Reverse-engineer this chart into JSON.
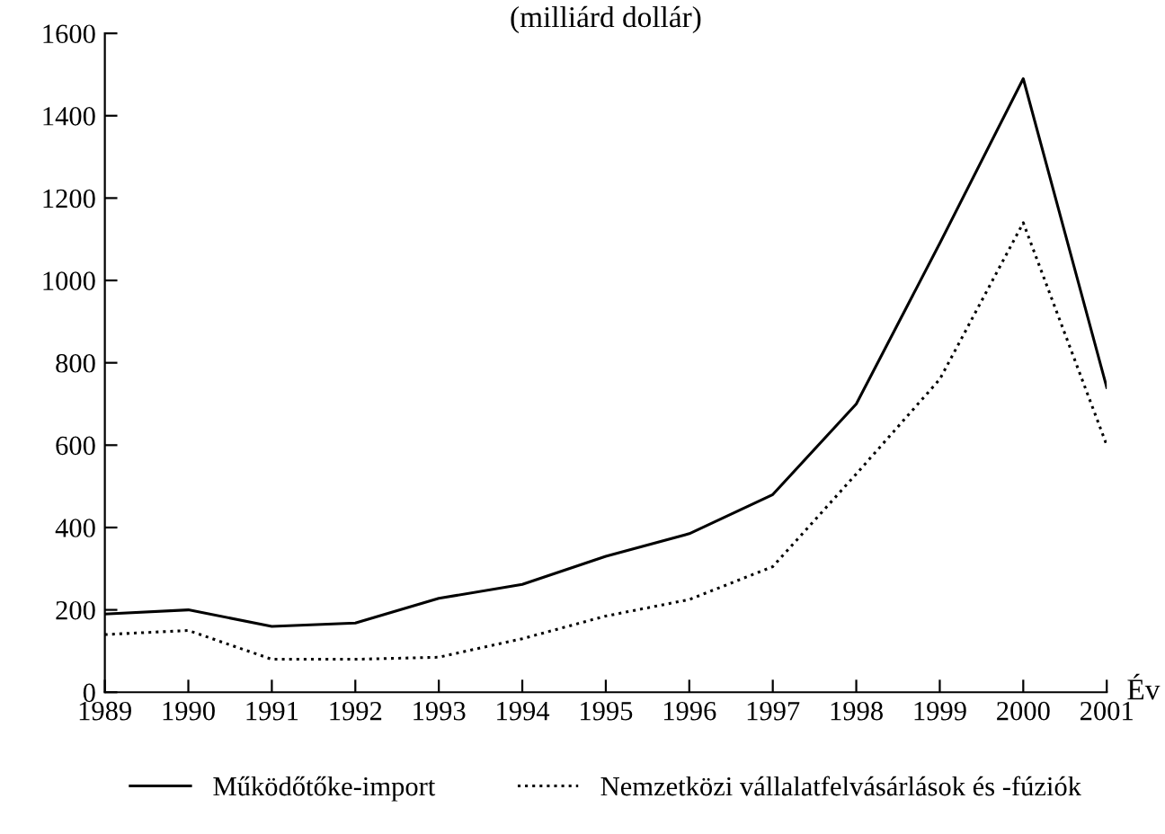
{
  "chart_data": {
    "type": "line",
    "title": "(milliárd dollár)",
    "xlabel": "Év",
    "categories": [
      "1989",
      "1990",
      "1991",
      "1992",
      "1993",
      "1994",
      "1995",
      "1996",
      "1997",
      "1998",
      "1999",
      "2000",
      "2001"
    ],
    "series": [
      {
        "name": "Működőtőke-import",
        "color": "#000000",
        "line_style": "solid",
        "values": [
          190,
          200,
          160,
          168,
          228,
          262,
          330,
          385,
          480,
          700,
          1090,
          1490,
          740
        ]
      },
      {
        "name": "Nemzetközi vállalatfelvásárlások és -fúziók",
        "color": "#000000",
        "line_style": "dotted",
        "values": [
          140,
          150,
          80,
          80,
          85,
          130,
          185,
          225,
          305,
          530,
          760,
          1140,
          600
        ]
      }
    ],
    "ylim": [
      0,
      1600
    ],
    "yticks": [
      0,
      200,
      400,
      600,
      800,
      1000,
      1200,
      1400,
      1600
    ],
    "grid": false,
    "legend": "bottom",
    "marker": "none"
  }
}
